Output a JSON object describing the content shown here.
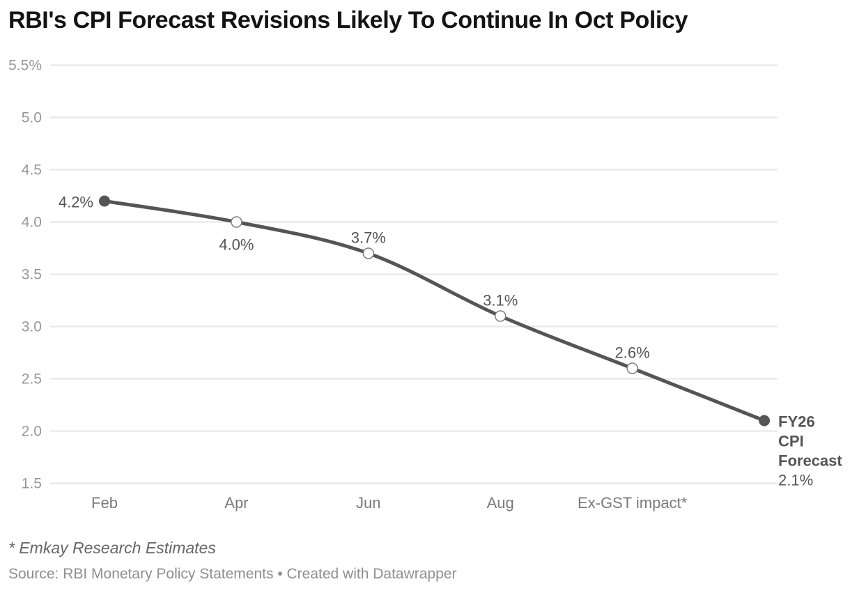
{
  "header": {
    "title": "RBI's CPI Forecast Revisions Likely To Continue In Oct Policy"
  },
  "footer": {
    "footnote": "* Emkay Research Estimates",
    "source": "Source: RBI Monetary Policy Statements • Created with Datawrapper"
  },
  "colors": {
    "title_text": "#141414",
    "line": "#555555",
    "grid": "#e6e6e6",
    "open_marker_stroke": "#7d7d7d",
    "y_axis_text": "#979797",
    "x_axis_text": "#7a7a7a",
    "label_text": "#555555"
  },
  "chart_data": {
    "type": "line",
    "title": "RBI's CPI Forecast Revisions Likely To Continue In Oct Policy",
    "categories": [
      "Feb",
      "Apr",
      "Jun",
      "Aug",
      "Ex-GST impact*",
      "FY26 CPI Forecast"
    ],
    "values": [
      4.2,
      4.0,
      3.7,
      3.1,
      2.6,
      2.1
    ],
    "unit": "%",
    "xlabel": "",
    "ylabel": "",
    "ylim": [
      1.5,
      5.5
    ],
    "grid": true,
    "legend": "none",
    "yticks": [
      {
        "value": 5.5,
        "label": "5.5%"
      },
      {
        "value": 5.0,
        "label": "5.0"
      },
      {
        "value": 4.5,
        "label": "4.5"
      },
      {
        "value": 4.0,
        "label": "4.0"
      },
      {
        "value": 3.5,
        "label": "3.5"
      },
      {
        "value": 3.0,
        "label": "3.0"
      },
      {
        "value": 2.5,
        "label": "2.5"
      },
      {
        "value": 2.0,
        "label": "2.0"
      },
      {
        "value": 1.5,
        "label": "1.5"
      }
    ],
    "points": [
      {
        "category": "Feb",
        "value": 4.2,
        "label": "4.2%",
        "label_pos": "left",
        "marker": "filled",
        "axis_label": "Feb"
      },
      {
        "category": "Apr",
        "value": 4.0,
        "label": "4.0%",
        "label_pos": "below",
        "marker": "open",
        "axis_label": "Apr"
      },
      {
        "category": "Jun",
        "value": 3.7,
        "label": "3.7%",
        "label_pos": "above",
        "marker": "open",
        "axis_label": "Jun"
      },
      {
        "category": "Aug",
        "value": 3.1,
        "label": "3.1%",
        "label_pos": "above",
        "marker": "open",
        "axis_label": "Aug"
      },
      {
        "category": "Ex-GST impact*",
        "value": 2.6,
        "label": "2.6%",
        "label_pos": "above",
        "marker": "open",
        "axis_label": "Ex-GST impact*"
      },
      {
        "category": "FY26 CPI Forecast",
        "value": 2.1,
        "label": "2.1%",
        "label_pos": "right",
        "marker": "filled",
        "axis_label": "",
        "end_label_lines": [
          "FY26",
          "CPI",
          "Forecast",
          "2.1%"
        ]
      }
    ]
  }
}
